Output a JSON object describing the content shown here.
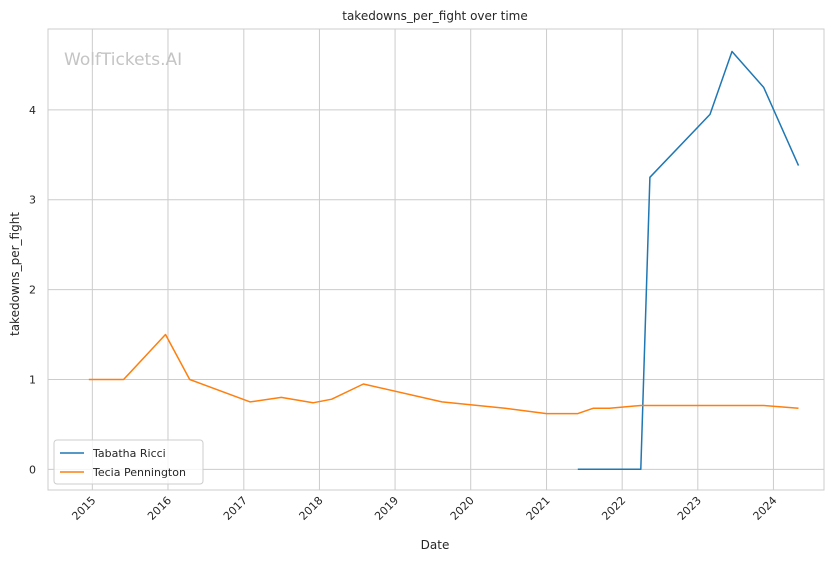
{
  "chart_data": {
    "type": "line",
    "title": "takedowns_per_fight over time",
    "xlabel": "Date",
    "ylabel": "takedowns_per_fight",
    "watermark": "WolfTickets.AI",
    "x_ticks": [
      "2015",
      "2016",
      "2017",
      "2018",
      "2019",
      "2020",
      "2021",
      "2022",
      "2023",
      "2024"
    ],
    "y_ticks": [
      "0",
      "1",
      "2",
      "3",
      "4"
    ],
    "xlim": [
      "2014-06-01",
      "2024-09-01"
    ],
    "ylim": [
      -0.23,
      4.9
    ],
    "grid": true,
    "legend_position": "lower-left",
    "series": [
      {
        "name": "Tabatha Ricci",
        "color": "#1f77b4",
        "points": [
          [
            "2021-06-01",
            0.0
          ],
          [
            "2022-04-01",
            0.0
          ],
          [
            "2022-05-15",
            3.25
          ],
          [
            "2023-03-01",
            3.95
          ],
          [
            "2023-06-15",
            4.65
          ],
          [
            "2023-11-15",
            4.25
          ],
          [
            "2024-05-01",
            3.38
          ]
        ]
      },
      {
        "name": "Tecia Pennington",
        "color": "#ff7f0e",
        "points": [
          [
            "2014-12-15",
            1.0
          ],
          [
            "2015-06-01",
            1.0
          ],
          [
            "2015-12-20",
            1.5
          ],
          [
            "2016-04-15",
            1.0
          ],
          [
            "2017-02-01",
            0.75
          ],
          [
            "2017-07-01",
            0.8
          ],
          [
            "2017-12-01",
            0.74
          ],
          [
            "2018-03-01",
            0.78
          ],
          [
            "2018-08-01",
            0.95
          ],
          [
            "2019-08-15",
            0.75
          ],
          [
            "2020-06-15",
            0.68
          ],
          [
            "2021-01-01",
            0.62
          ],
          [
            "2021-06-01",
            0.62
          ],
          [
            "2021-08-15",
            0.68
          ],
          [
            "2021-11-01",
            0.68
          ],
          [
            "2022-04-01",
            0.71
          ],
          [
            "2023-11-15",
            0.71
          ],
          [
            "2024-05-01",
            0.68
          ]
        ]
      }
    ]
  }
}
